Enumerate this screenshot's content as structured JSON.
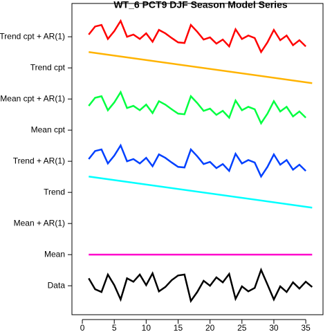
{
  "chart_data": {
    "type": "line",
    "title": "WT_6 PCT9 DJF Season Model Series",
    "x": [
      1,
      2,
      3,
      4,
      5,
      6,
      7,
      8,
      9,
      10,
      11,
      12,
      13,
      14,
      15,
      16,
      17,
      18,
      19,
      20,
      21,
      22,
      23,
      24,
      25,
      26,
      27,
      28,
      29,
      30,
      31,
      32,
      33,
      34,
      35,
      36
    ],
    "xlim": [
      -1.63,
      37.7
    ],
    "xticks": [
      0,
      5,
      10,
      15,
      20,
      25,
      30,
      35
    ],
    "ylim": [
      0.07,
      10.07
    ],
    "yticks": [
      {
        "value": 1,
        "label": "Data"
      },
      {
        "value": 2,
        "label": "Mean"
      },
      {
        "value": 3,
        "label": "Mean + AR(1)"
      },
      {
        "value": 4,
        "label": "Trend"
      },
      {
        "value": 5,
        "label": "Trend + AR(1)"
      },
      {
        "value": 6,
        "label": "Mean cpt"
      },
      {
        "value": 7,
        "label": "Mean cpt + AR(1)"
      },
      {
        "value": 8,
        "label": "Trend cpt"
      },
      {
        "value": 9,
        "label": "Trend cpt + AR(1)"
      }
    ],
    "series": [
      {
        "color": "#000000",
        "values": [
          1.24,
          0.89,
          0.8,
          1.36,
          1.02,
          0.56,
          1.24,
          1.13,
          1.36,
          1.02,
          1.4,
          0.82,
          0.96,
          1.18,
          1.33,
          1.36,
          0.51,
          0.8,
          1.16,
          1.0,
          1.27,
          1.11,
          1.38,
          0.58,
          0.98,
          0.82,
          0.93,
          1.51,
          1.04,
          0.56,
          0.98,
          0.8,
          1.11,
          0.91,
          1.13,
          0.96
        ]
      },
      {
        "color": "#ff00cc",
        "x": [
          1,
          36
        ],
        "values": [
          2,
          2
        ]
      },
      {
        "color": "#00ffff",
        "x": [
          1,
          36
        ],
        "values": [
          4.51,
          3.51
        ]
      },
      {
        "color": "#0040ff",
        "values": [
          5.07,
          5.33,
          5.38,
          4.93,
          5.18,
          5.51,
          5.0,
          5.07,
          4.93,
          5.11,
          4.84,
          5.22,
          5.11,
          4.96,
          4.82,
          4.8,
          5.38,
          5.16,
          4.91,
          4.98,
          4.78,
          4.91,
          4.69,
          5.24,
          4.93,
          5.04,
          4.96,
          4.51,
          4.82,
          5.22,
          4.89,
          5.04,
          4.73,
          4.89,
          4.69,
          null
        ]
      },
      {
        "color": "#00ff40",
        "values": [
          6.78,
          7.04,
          7.09,
          6.64,
          6.89,
          7.22,
          6.71,
          6.78,
          6.64,
          6.82,
          6.55,
          6.93,
          6.82,
          6.67,
          6.53,
          6.51,
          7.09,
          6.87,
          6.62,
          6.69,
          6.49,
          6.62,
          6.4,
          6.95,
          6.64,
          6.75,
          6.67,
          6.22,
          6.53,
          6.93,
          6.6,
          6.75,
          6.44,
          6.6,
          6.4,
          null
        ]
      },
      {
        "color": "#ffb300",
        "x": [
          1,
          36
        ],
        "values": [
          8.51,
          7.51
        ]
      },
      {
        "color": "#ff0000",
        "values": [
          9.07,
          9.33,
          9.38,
          8.93,
          9.18,
          9.51,
          9.0,
          9.07,
          8.93,
          9.11,
          8.84,
          9.22,
          9.11,
          8.96,
          8.82,
          8.8,
          9.38,
          9.16,
          8.91,
          8.98,
          8.78,
          8.91,
          8.69,
          9.24,
          8.93,
          9.04,
          8.96,
          8.51,
          8.82,
          9.22,
          8.89,
          9.04,
          8.73,
          8.89,
          8.69,
          null
        ]
      }
    ]
  }
}
